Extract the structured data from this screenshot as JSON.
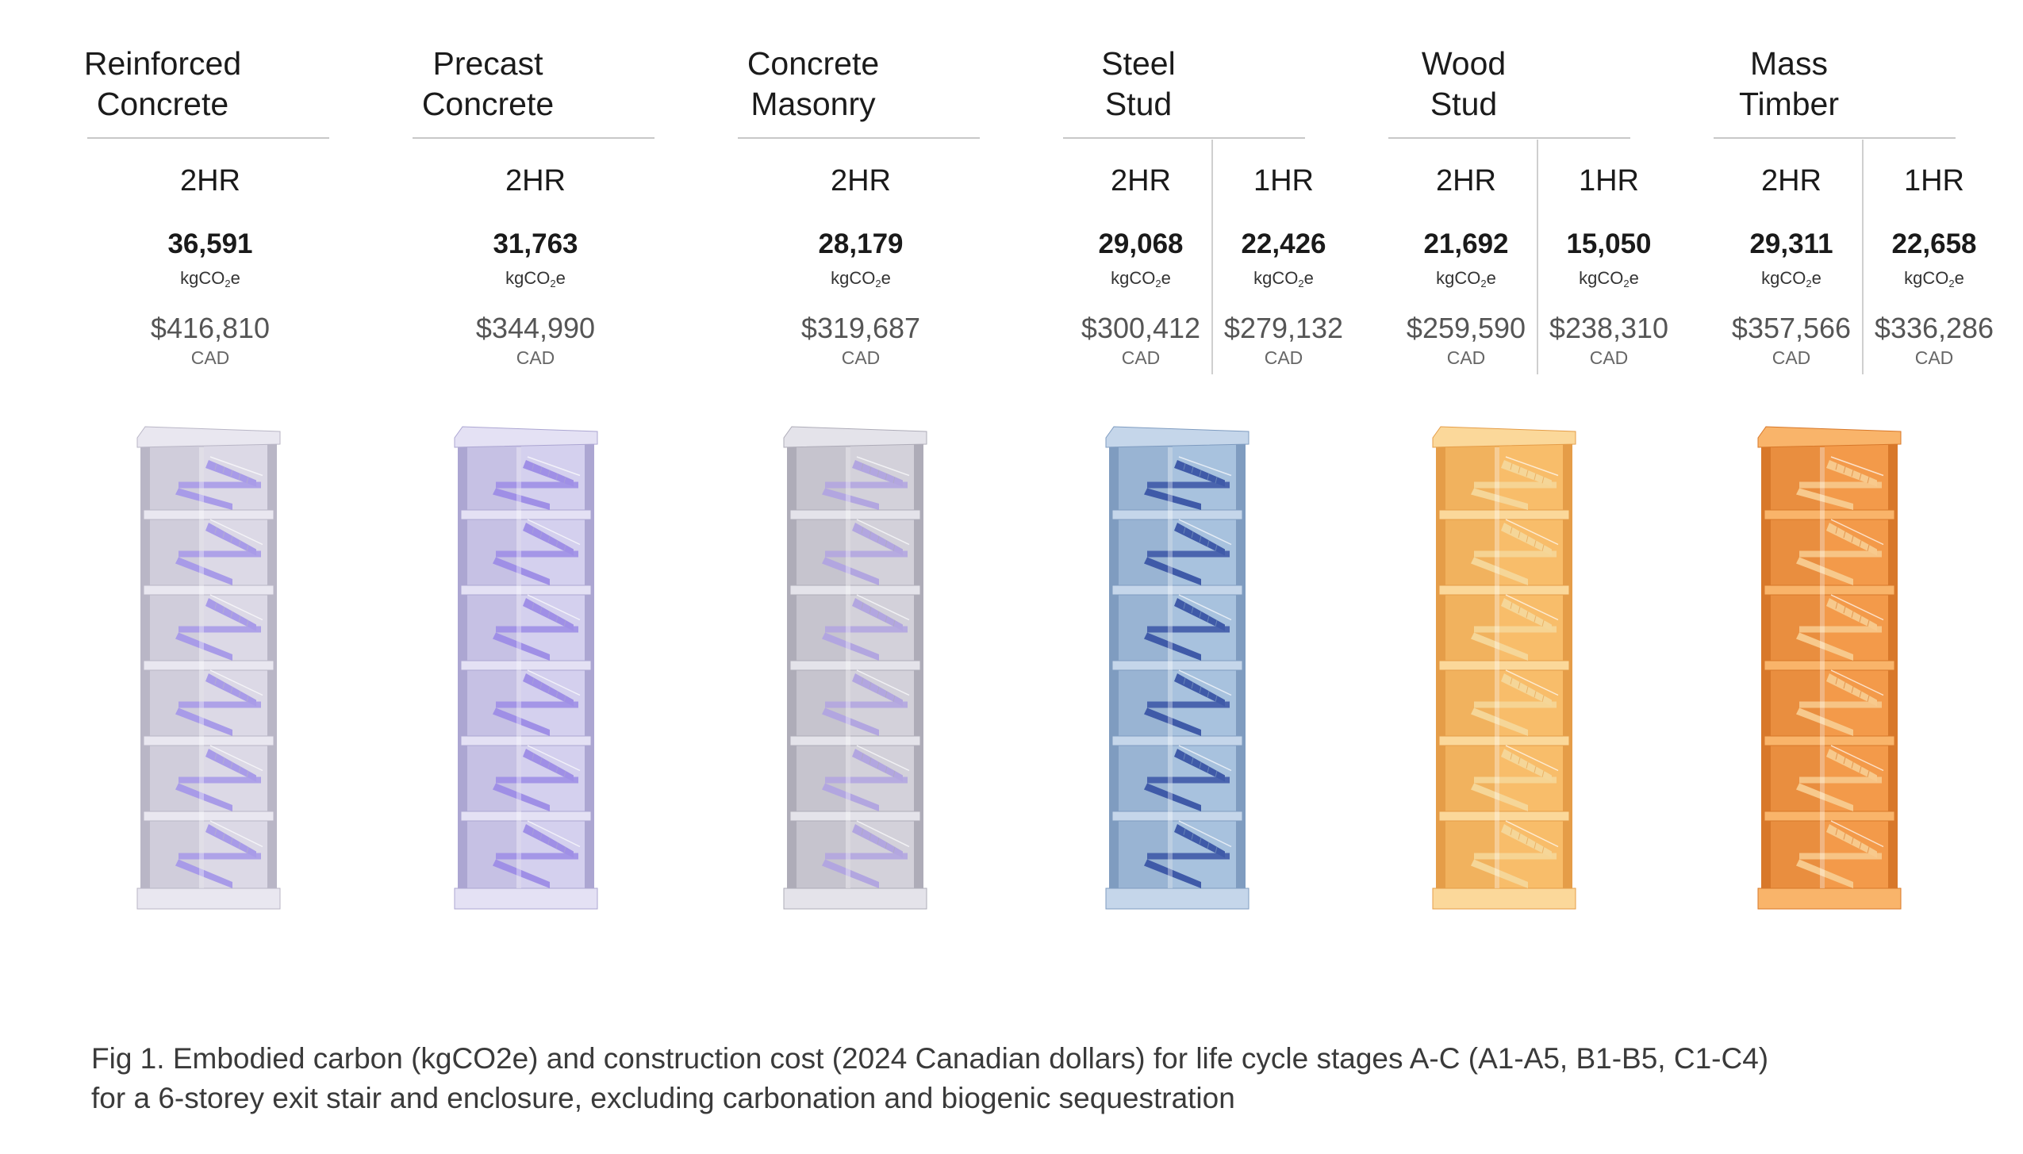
{
  "systems": [
    {
      "title_lines": [
        "Reinforced",
        "Concrete"
      ],
      "colors": {
        "wall": "#dcd9e6",
        "edge": "#b9b6c6",
        "stair": "#a89be8",
        "slab": "#e9e7f0"
      },
      "ratings": [
        {
          "rating": "2HR",
          "carbon": "36,591",
          "cost": "$416,810"
        }
      ]
    },
    {
      "title_lines": [
        "Precast",
        "Concrete"
      ],
      "colors": {
        "wall": "#d4d0ee",
        "edge": "#aca6d2",
        "stair": "#9f8fe6",
        "slab": "#e4e1f4"
      },
      "ratings": [
        {
          "rating": "2HR",
          "carbon": "31,763",
          "cost": "$344,990"
        }
      ]
    },
    {
      "title_lines": [
        "Concrete",
        "Masonry"
      ],
      "colors": {
        "wall": "#d3d1da",
        "edge": "#aeacb8",
        "stair": "#b2a6e0",
        "slab": "#e4e3ea"
      },
      "ratings": [
        {
          "rating": "2HR",
          "carbon": "28,179",
          "cost": "$319,687"
        }
      ]
    },
    {
      "title_lines": [
        "Steel",
        "Stud"
      ],
      "colors": {
        "wall": "#a8c2de",
        "edge": "#7f9cc0",
        "stair": "#3f5aa8",
        "slab": "#c5d6ea"
      },
      "ratings": [
        {
          "rating": "2HR",
          "carbon": "29,068",
          "cost": "$300,412"
        },
        {
          "rating": "1HR",
          "carbon": "22,426",
          "cost": "$279,132"
        }
      ]
    },
    {
      "title_lines": [
        "Wood",
        "Stud"
      ],
      "colors": {
        "wall": "#f8bd6a",
        "edge": "#e59d48",
        "stair": "#f5d698",
        "slab": "#fbd89a"
      },
      "ratings": [
        {
          "rating": "2HR",
          "carbon": "21,692",
          "cost": "$259,590"
        },
        {
          "rating": "1HR",
          "carbon": "15,050",
          "cost": "$238,310"
        }
      ]
    },
    {
      "title_lines": [
        "Mass",
        "Timber"
      ],
      "colors": {
        "wall": "#f39a4a",
        "edge": "#d8782a",
        "stair": "#f7c98c",
        "slab": "#f9b46a"
      },
      "ratings": [
        {
          "rating": "2HR",
          "carbon": "29,311",
          "cost": "$357,566"
        },
        {
          "rating": "1HR",
          "carbon": "22,658",
          "cost": "$336,286"
        }
      ]
    }
  ],
  "units": {
    "carbon_base": "kgCO",
    "carbon_sub": "2",
    "carbon_tail": "e",
    "cost": "CAD"
  },
  "caption_lines": [
    "Fig 1. Embodied carbon (kgCO2e) and construction cost (2024 Canadian dollars) for life cycle stages A-C (A1-A5, B1-B5, C1-C4)",
    "for a 6-storey exit stair and enclosure, excluding carbonation and biogenic sequestration"
  ]
}
